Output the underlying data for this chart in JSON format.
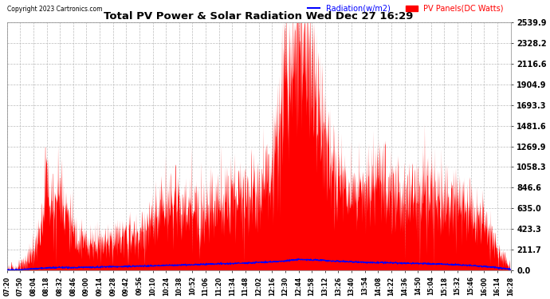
{
  "title": "Total PV Power & Solar Radiation Wed Dec 27 16:29",
  "copyright": "Copyright 2023 Cartronics.com",
  "legend_radiation": "Radiation(w/m2)",
  "legend_pv": "PV Panels(DC Watts)",
  "background_color": "#ffffff",
  "plot_background": "#ffffff",
  "grid_color": "#bbbbbb",
  "radiation_color": "#0000ff",
  "pv_color": "#ff0000",
  "ymin": 0.0,
  "ymax": 2539.9,
  "yticks": [
    0.0,
    211.7,
    423.3,
    635.0,
    846.6,
    1058.3,
    1269.9,
    1481.6,
    1693.3,
    1904.9,
    2116.6,
    2328.2,
    2539.9
  ],
  "xtick_labels": [
    "07:20",
    "07:50",
    "08:04",
    "08:18",
    "08:32",
    "08:46",
    "09:00",
    "09:14",
    "09:28",
    "09:42",
    "09:56",
    "10:10",
    "10:24",
    "10:38",
    "10:52",
    "11:06",
    "11:20",
    "11:34",
    "11:48",
    "12:02",
    "12:16",
    "12:30",
    "12:44",
    "12:58",
    "13:12",
    "13:26",
    "13:40",
    "13:54",
    "14:08",
    "14:22",
    "14:36",
    "14:50",
    "15:04",
    "15:18",
    "15:32",
    "15:46",
    "16:00",
    "16:14",
    "16:28"
  ],
  "pv_values": [
    5,
    30,
    200,
    600,
    820,
    400,
    280,
    300,
    320,
    340,
    360,
    500,
    560,
    580,
    620,
    680,
    700,
    780,
    820,
    860,
    1050,
    1800,
    2400,
    2100,
    1300,
    900,
    820,
    780,
    900,
    880,
    700,
    840,
    820,
    780,
    720,
    600,
    480,
    200,
    20
  ],
  "radiation_values": [
    2,
    5,
    15,
    22,
    28,
    25,
    30,
    32,
    35,
    38,
    42,
    45,
    50,
    52,
    55,
    60,
    65,
    68,
    72,
    80,
    85,
    95,
    110,
    105,
    100,
    90,
    85,
    80,
    78,
    75,
    70,
    68,
    65,
    60,
    55,
    48,
    38,
    25,
    8
  ]
}
